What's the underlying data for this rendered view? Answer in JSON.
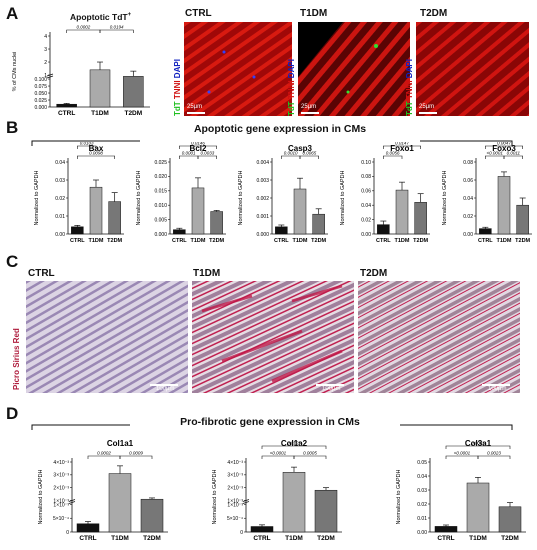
{
  "panels": {
    "a": "A",
    "b": "B",
    "c": "C",
    "d": "D"
  },
  "colors": {
    "ctrl": "#111111",
    "t1dm": "#aaaaaa",
    "t2dm": "#777777",
    "tnni": "#d01010",
    "tdt": "#20c020",
    "dapi": "#1020c0",
    "sirius": "#b02040"
  },
  "panelA": {
    "chart_title": "Apoptotic TdT",
    "chart_title_sup": "+",
    "micro_labels": [
      "CTRL",
      "T1DM",
      "T2DM"
    ],
    "stain_tdt": "TdT",
    "stain_tnni": "TNNI",
    "stain_dapi": "DAPI",
    "scale": "25µm"
  },
  "panelB_title": "Apoptotic gene expression in CMs",
  "panelC": {
    "labels": [
      "CTRL",
      "T1DM",
      "T2DM"
    ],
    "side_label": "Picro Sirius Red",
    "scale": "100µm"
  },
  "panelD_title": "Pro-fibrotic gene expression in CMs",
  "chart_data": [
    {
      "id": "a",
      "type": "bar",
      "title": "Apoptotic TdT+",
      "categories": [
        "CTRL",
        "T1DM",
        "T2DM"
      ],
      "values": [
        0.01,
        1.4,
        0.9
      ],
      "errors": [
        0.003,
        0.6,
        0.4
      ],
      "ylabel": "% of CMs nuclei",
      "yticks": [
        "0.000",
        "0.025",
        "0.050",
        "0.075",
        "0.100",
        "1",
        "2",
        "3",
        "4"
      ],
      "y_axis": "broken",
      "pvalues": [
        "0.0002",
        "0.0194"
      ]
    },
    {
      "id": "bax",
      "type": "bar",
      "title": "Bax",
      "categories": [
        "CTRL",
        "T1DM",
        "T2DM"
      ],
      "values": [
        0.004,
        0.026,
        0.018
      ],
      "errors": [
        0.0008,
        0.004,
        0.005
      ],
      "ylabel": "Normalized to GAPDH",
      "ylim": [
        0,
        0.04
      ],
      "yticks": [
        "0.00",
        "0.01",
        "0.02",
        "0.03",
        "0.04"
      ],
      "pvalues": [
        "0.0103",
        "0.0098"
      ]
    },
    {
      "id": "bcl2",
      "type": "bar",
      "title": "Bcl2",
      "categories": [
        "CTRL",
        "T1DM",
        "T2DM"
      ],
      "values": [
        0.0015,
        0.016,
        0.0078
      ],
      "errors": [
        0.0005,
        0.0035,
        0.0004
      ],
      "ylabel": "Normalized to GAPDH",
      "ylim": [
        0,
        0.025
      ],
      "yticks": [
        "0.000",
        "0.005",
        "0.010",
        "0.015",
        "0.020",
        "0.025"
      ],
      "pvalues": [
        "0.0146",
        "0.0001",
        "0.0033"
      ]
    },
    {
      "id": "casp3",
      "type": "bar",
      "title": "Casp3",
      "categories": [
        "CTRL",
        "T1DM",
        "T2DM"
      ],
      "values": [
        0.0004,
        0.0025,
        0.0011
      ],
      "errors": [
        0.0001,
        0.0006,
        0.0003
      ],
      "ylabel": "Normalized to GAPDH",
      "ylim": [
        0,
        0.004
      ],
      "yticks": [
        "0.000",
        "0.001",
        "0.002",
        "0.003",
        "0.004"
      ],
      "pvalues": [
        "0.0010",
        "0.0065"
      ]
    },
    {
      "id": "foxo1",
      "type": "bar",
      "title": "Foxo1",
      "categories": [
        "CTRL",
        "T1DM",
        "T2DM"
      ],
      "values": [
        0.013,
        0.061,
        0.044
      ],
      "errors": [
        0.005,
        0.011,
        0.012
      ],
      "ylabel": "Normalized to GAPDH",
      "ylim": [
        0,
        0.1
      ],
      "yticks": [
        "0.00",
        "0.02",
        "0.04",
        "0.06",
        "0.08",
        "0.10"
      ],
      "pvalues": [
        "0.0147",
        "0.0056"
      ]
    },
    {
      "id": "foxo3",
      "type": "bar",
      "title": "Foxo3",
      "categories": [
        "CTRL",
        "T1DM",
        "T2DM"
      ],
      "values": [
        0.006,
        0.064,
        0.032
      ],
      "errors": [
        0.0015,
        0.005,
        0.008
      ],
      "ylabel": "Normalized to GAPDH",
      "ylim": [
        0,
        0.08
      ],
      "yticks": [
        "0.00",
        "0.02",
        "0.04",
        "0.06",
        "0.08"
      ],
      "pvalues": [
        "0.0047",
        "<0.0001",
        "0.0011"
      ]
    },
    {
      "id": "col1a1",
      "type": "bar",
      "title": "Col1a1",
      "categories": [
        "CTRL",
        "T1DM",
        "T2DM"
      ],
      "values": [
        0.00015,
        0.0031,
        0.0011
      ],
      "errors": [
        4e-05,
        0.0006,
        0.0001
      ],
      "ylabel": "Normalized to GAPDH",
      "y_axis": "broken",
      "yticks": [
        "0",
        "5×10⁻⁴",
        "1×10⁻³",
        "1×10⁻³",
        "2×10⁻³",
        "3×10⁻³",
        "4×10⁻³"
      ],
      "pvalues": [
        "0.0002",
        "0.0009"
      ]
    },
    {
      "id": "col1a2",
      "type": "bar",
      "title": "Col1a2",
      "categories": [
        "CTRL",
        "T1DM",
        "T2DM"
      ],
      "values": [
        0.0001,
        0.0032,
        0.0018
      ],
      "errors": [
        3e-05,
        0.0004,
        0.0002
      ],
      "ylabel": "Normalized to GAPDH",
      "y_axis": "broken",
      "yticks": [
        "0",
        "5×10⁻⁴",
        "1×10⁻³",
        "1×10⁻³",
        "2×10⁻³",
        "3×10⁻³",
        "4×10⁻³"
      ],
      "pvalues": [
        "0.0107",
        "<0.0001",
        "0.0005"
      ]
    },
    {
      "id": "col3a1",
      "type": "bar",
      "title": "Col3a1",
      "categories": [
        "CTRL",
        "T1DM",
        "T2DM"
      ],
      "values": [
        0.004,
        0.035,
        0.018
      ],
      "errors": [
        0.001,
        0.004,
        0.003
      ],
      "ylabel": "Normalized to GAPDH",
      "ylim": [
        0,
        0.05
      ],
      "yticks": [
        "0.00",
        "0.01",
        "0.02",
        "0.03",
        "0.04",
        "0.05"
      ],
      "pvalues": [
        "0.0061",
        "<0.0001",
        "0.0023"
      ]
    }
  ]
}
